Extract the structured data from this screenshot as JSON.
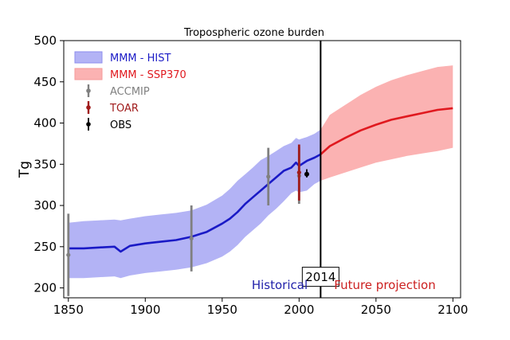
{
  "chart_data": {
    "type": "line",
    "title": "Tropospheric ozone burden",
    "xlabel": "",
    "ylabel": "Tg",
    "xlim": [
      1847,
      2105
    ],
    "ylim": [
      188,
      500
    ],
    "xticks": [
      1850,
      1900,
      1950,
      2000,
      2050,
      2100
    ],
    "yticks": [
      200,
      250,
      300,
      350,
      400,
      450,
      500
    ],
    "grid": false,
    "legend_position": "top-left",
    "colors": {
      "hist_line": "#1a1ac6",
      "hist_band": "#b3b3f5",
      "ssp_line": "#e0191f",
      "ssp_band": "#fbb2b2",
      "accmip": "#808080",
      "toar": "#a01b1b",
      "obs": "#000000",
      "historical_text": "#2222aa",
      "future_text": "#cc2020"
    },
    "legend": [
      {
        "label": "MMM - HIST",
        "kind": "band",
        "color_key": "hist_band"
      },
      {
        "label": "MMM - SSP370",
        "kind": "band",
        "color_key": "ssp_band"
      },
      {
        "label": "ACCMIP",
        "kind": "errorbar",
        "color_key": "accmip"
      },
      {
        "label": "TOAR",
        "kind": "errorbar",
        "color_key": "toar"
      },
      {
        "label": "OBS",
        "kind": "errorbar",
        "color_key": "obs"
      }
    ],
    "series": [
      {
        "name": "MMM - HIST",
        "x": [
          1850,
          1860,
          1870,
          1880,
          1884,
          1890,
          1900,
          1910,
          1920,
          1930,
          1940,
          1950,
          1955,
          1960,
          1965,
          1970,
          1975,
          1980,
          1985,
          1990,
          1995,
          1998,
          2000,
          2005,
          2010,
          2014
        ],
        "y": [
          248,
          248,
          249,
          250,
          244,
          251,
          254,
          256,
          258,
          262,
          268,
          278,
          284,
          292,
          302,
          310,
          318,
          326,
          334,
          342,
          346,
          352,
          348,
          354,
          358,
          362
        ],
        "lower": [
          212,
          212,
          213,
          214,
          212,
          215,
          218,
          220,
          222,
          225,
          230,
          238,
          244,
          252,
          262,
          270,
          278,
          288,
          296,
          305,
          315,
          318,
          316,
          318,
          326,
          330
        ],
        "upper": [
          279,
          281,
          282,
          283,
          282,
          284,
          287,
          289,
          291,
          294,
          301,
          312,
          320,
          330,
          338,
          346,
          355,
          360,
          366,
          372,
          376,
          382,
          380,
          383,
          387,
          392
        ]
      },
      {
        "name": "MMM - SSP370",
        "x": [
          2014,
          2020,
          2030,
          2040,
          2050,
          2060,
          2070,
          2080,
          2090,
          2100
        ],
        "y": [
          362,
          372,
          382,
          391,
          398,
          404,
          408,
          412,
          416,
          418
        ],
        "lower": [
          330,
          334,
          340,
          346,
          352,
          356,
          360,
          363,
          366,
          370
        ],
        "upper": [
          392,
          410,
          422,
          434,
          444,
          452,
          458,
          463,
          468,
          470
        ]
      }
    ],
    "errorbars": [
      {
        "name": "ACCMIP",
        "x": 1850,
        "y": 240,
        "low": 190,
        "high": 290
      },
      {
        "name": "ACCMIP",
        "x": 1930,
        "y": 260,
        "low": 220,
        "high": 300
      },
      {
        "name": "ACCMIP",
        "x": 1980,
        "y": 335,
        "low": 300,
        "high": 370
      },
      {
        "name": "ACCMIP",
        "x": 2000,
        "y": 336,
        "low": 302,
        "high": 371
      },
      {
        "name": "TOAR",
        "x": 2000,
        "y": 340,
        "low": 306,
        "high": 374
      },
      {
        "name": "OBS",
        "x": 2005,
        "y": 338,
        "low": 334,
        "high": 344
      }
    ],
    "vline": {
      "x": 2014,
      "label": "2014",
      "label_y": 255
    },
    "region_labels": {
      "historical": "Historical",
      "future": "Future projection"
    }
  }
}
